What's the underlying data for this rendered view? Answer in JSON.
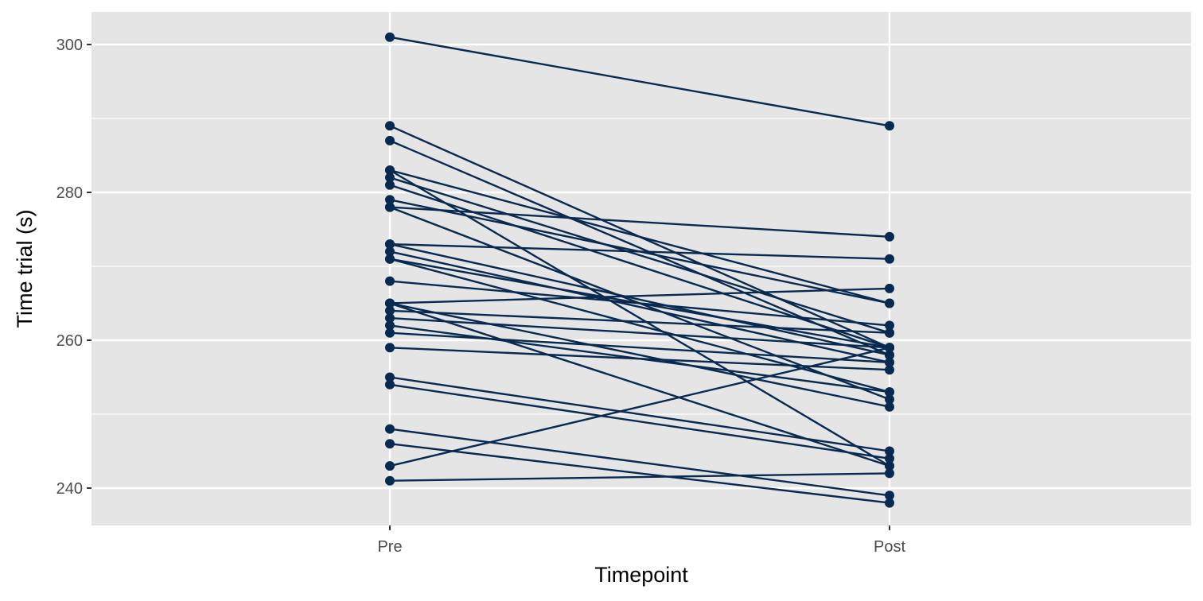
{
  "chart_data": {
    "type": "line",
    "xlabel": "Timepoint",
    "ylabel": "Time trial (s)",
    "categories": [
      "Pre",
      "Post"
    ],
    "y_ticks": [
      240,
      260,
      280,
      300
    ],
    "ylim": [
      235,
      304
    ],
    "grid": true,
    "colors": {
      "panel": "#e5e5e5",
      "grid": "#ffffff",
      "series": "#082a50",
      "tick_mark": "#333333"
    },
    "series": [
      {
        "values": [
          301,
          289
        ]
      },
      {
        "values": [
          289,
          259
        ]
      },
      {
        "values": [
          287,
          258
        ]
      },
      {
        "values": [
          283,
          265
        ]
      },
      {
        "values": [
          283,
          243
        ]
      },
      {
        "values": [
          282,
          261
        ]
      },
      {
        "values": [
          281,
          259
        ]
      },
      {
        "values": [
          279,
          265
        ]
      },
      {
        "values": [
          278,
          274
        ]
      },
      {
        "values": [
          278,
          252
        ]
      },
      {
        "values": [
          273,
          271
        ]
      },
      {
        "values": [
          273,
          258
        ]
      },
      {
        "values": [
          272,
          257
        ]
      },
      {
        "values": [
          271,
          259
        ]
      },
      {
        "values": [
          271,
          253
        ]
      },
      {
        "values": [
          268,
          262
        ]
      },
      {
        "values": [
          265,
          267
        ]
      },
      {
        "values": [
          265,
          251
        ]
      },
      {
        "values": [
          265,
          243
        ]
      },
      {
        "values": [
          264,
          261
        ]
      },
      {
        "values": [
          263,
          259
        ]
      },
      {
        "values": [
          262,
          253
        ]
      },
      {
        "values": [
          261,
          257
        ]
      },
      {
        "values": [
          259,
          256
        ]
      },
      {
        "values": [
          255,
          245
        ]
      },
      {
        "values": [
          254,
          244
        ]
      },
      {
        "values": [
          248,
          239
        ]
      },
      {
        "values": [
          246,
          238
        ]
      },
      {
        "values": [
          243,
          259
        ]
      },
      {
        "values": [
          241,
          242
        ]
      }
    ]
  }
}
